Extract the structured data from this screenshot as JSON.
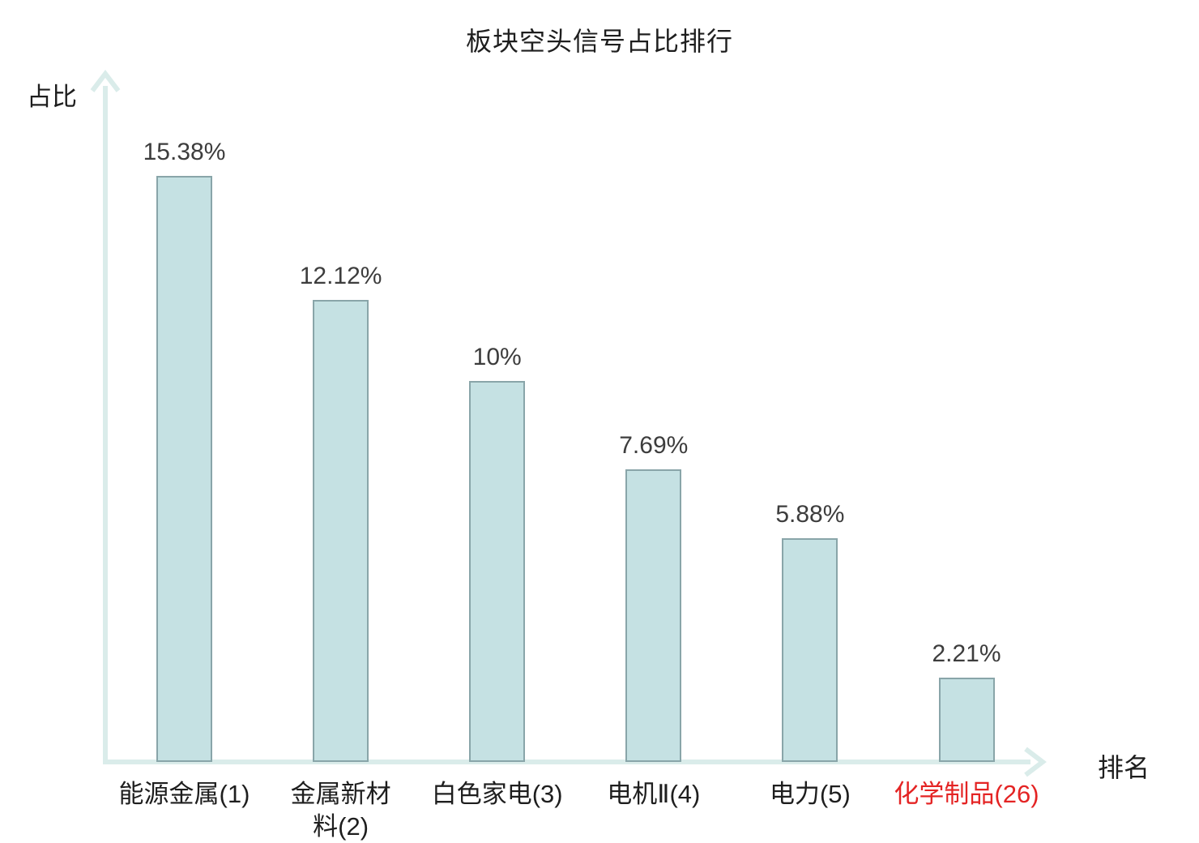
{
  "chart_data": {
    "type": "bar",
    "title": "板块空头信号占比排行",
    "xlabel": "排名",
    "ylabel": "占比",
    "categories": [
      "能源金属(1)",
      "金属新材料(2)",
      "白色家电(3)",
      "电机Ⅱ(4)",
      "电力(5)",
      "化学制品(26)"
    ],
    "category_lines": [
      [
        "能源金属(1)"
      ],
      [
        "金属新材",
        "料(2)"
      ],
      [
        "白色家电(3)"
      ],
      [
        "电机Ⅱ(4)"
      ],
      [
        "电力(5)"
      ],
      [
        "化学制品(26)"
      ]
    ],
    "values": [
      15.38,
      12.12,
      10,
      7.69,
      5.88,
      2.21
    ],
    "value_labels": [
      "15.38%",
      "12.12%",
      "10%",
      "7.69%",
      "5.88%",
      "2.21%"
    ],
    "highlight_index": 5,
    "highlight_category": "化学制品(26)",
    "ylim": [
      0,
      18
    ],
    "grid": false,
    "legend": null,
    "colors": {
      "bar_fill": "#c5e1e3",
      "bar_border": "#89a5a9",
      "axis": "#daecea",
      "text": "#1e1e1e",
      "value_text": "#3d3d3d",
      "highlight_text": "#e42424"
    }
  }
}
